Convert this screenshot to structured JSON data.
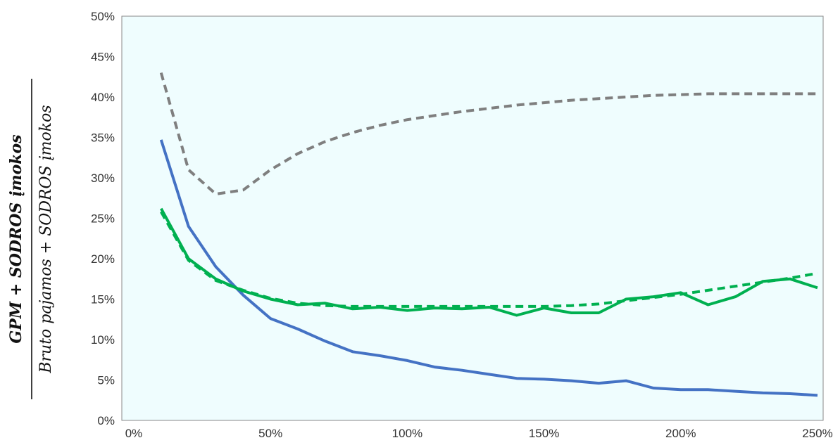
{
  "chart_data": {
    "type": "line",
    "title": "",
    "xlabel": "",
    "ylabel": {
      "numerator": "GPM + SODROS įmokos",
      "denominator": "Bruto pajamos + SODROS įmokos"
    },
    "xlim": [
      0,
      250
    ],
    "ylim": [
      0,
      50
    ],
    "x_ticks": [
      "0%",
      "50%",
      "100%",
      "150%",
      "200%",
      "250%"
    ],
    "y_ticks": [
      "0%",
      "5%",
      "10%",
      "15%",
      "20%",
      "25%",
      "30%",
      "35%",
      "40%",
      "45%",
      "50%"
    ],
    "grid": false,
    "plot_background": "#effdfe",
    "x": [
      10,
      20,
      30,
      40,
      50,
      60,
      70,
      80,
      90,
      100,
      110,
      120,
      130,
      140,
      150,
      160,
      170,
      180,
      190,
      200,
      210,
      220,
      230,
      240,
      250
    ],
    "series": [
      {
        "color": "#7f7f7f",
        "dash": "dashed",
        "values": [
          43.0,
          31.0,
          28.0,
          28.5,
          31.0,
          33.0,
          34.5,
          35.6,
          36.5,
          37.2,
          37.7,
          38.2,
          38.6,
          39.0,
          39.3,
          39.6,
          39.8,
          40.0,
          40.2,
          40.3,
          40.4,
          40.4,
          40.4,
          40.4,
          40.4
        ]
      },
      {
        "color": "#4472c4",
        "dash": "solid",
        "values": [
          34.7,
          24.0,
          19.0,
          15.5,
          12.6,
          11.3,
          9.8,
          8.5,
          8.0,
          7.4,
          6.6,
          6.2,
          5.7,
          5.2,
          5.1,
          4.9,
          4.6,
          4.9,
          4.0,
          3.8,
          3.8,
          3.6,
          3.4,
          3.3,
          3.1
        ]
      },
      {
        "color": "#00b050",
        "dash": "solid",
        "values": [
          26.2,
          20.0,
          17.5,
          16.0,
          15.0,
          14.3,
          14.5,
          13.8,
          14.0,
          13.6,
          13.9,
          13.8,
          14.0,
          13.0,
          13.9,
          13.3,
          13.3,
          15.0,
          15.3,
          15.8,
          14.3,
          15.3,
          17.2,
          17.5,
          16.4
        ]
      },
      {
        "color": "#00b050",
        "dash": "dashed",
        "values": [
          25.8,
          19.8,
          17.3,
          16.1,
          15.1,
          14.5,
          14.2,
          14.1,
          14.1,
          14.1,
          14.1,
          14.1,
          14.1,
          14.1,
          14.1,
          14.2,
          14.4,
          14.8,
          15.2,
          15.6,
          16.1,
          16.6,
          17.1,
          17.6,
          18.2
        ]
      }
    ]
  }
}
